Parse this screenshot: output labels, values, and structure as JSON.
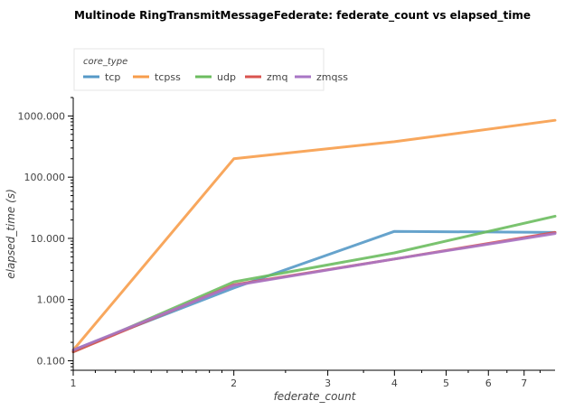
{
  "chart_data": {
    "type": "line",
    "title": "Multinode RingTransmitMessageFederate: federate_count vs elapsed_time",
    "xlabel": "federate_count",
    "ylabel": "elapsed_time (s)",
    "x_scale": "log",
    "y_scale": "log",
    "xlim": [
      1,
      8
    ],
    "ylim": [
      0.07,
      2000
    ],
    "x_ticks": [
      1,
      2,
      3,
      4,
      5,
      6,
      7
    ],
    "x_tick_labels": [
      "1",
      "2",
      "3",
      "4",
      "5",
      "6",
      "7"
    ],
    "y_ticks": [
      0.1,
      1,
      10,
      100,
      1000
    ],
    "y_tick_labels": [
      "0.100",
      "1.000",
      "10.000",
      "100.000",
      "1000.000"
    ],
    "grid": false,
    "legend_title": "core_type",
    "legend_position": "top-left",
    "x": [
      1,
      2,
      4,
      8
    ],
    "series": [
      {
        "name": "tcp",
        "color": "#5599c7",
        "values": [
          0.15,
          1.55,
          13.0,
          12.5
        ]
      },
      {
        "name": "tcpss",
        "color": "#f79d4b",
        "values": [
          0.15,
          200,
          380,
          850
        ]
      },
      {
        "name": "udp",
        "color": "#6cbc5f",
        "values": [
          0.14,
          1.95,
          5.8,
          23
        ]
      },
      {
        "name": "zmq",
        "color": "#d9534f",
        "values": [
          0.14,
          1.75,
          4.6,
          12.5
        ]
      },
      {
        "name": "zmqss",
        "color": "#a876c5",
        "values": [
          0.15,
          1.7,
          4.6,
          12.0
        ]
      }
    ]
  }
}
